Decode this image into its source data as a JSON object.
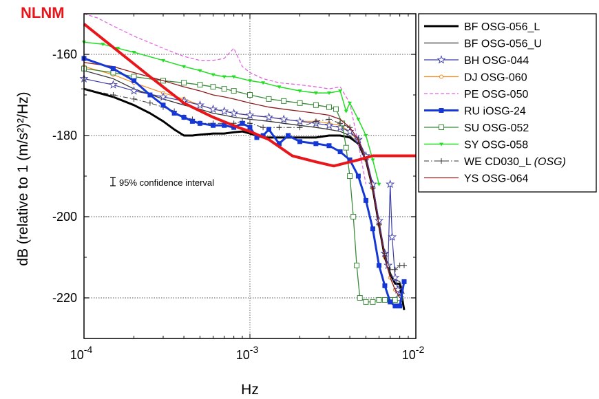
{
  "chart_data": {
    "type": "line",
    "title": "",
    "xlabel": "Hz",
    "ylabel": "dB (relative to 1 (m/s²)²/Hz)",
    "x_scale": "log",
    "xlim": [
      0.0001,
      0.01
    ],
    "ylim": [
      -230,
      -150
    ],
    "x_ticks": [
      {
        "value": 0.0001,
        "base": "10",
        "exp": "-4"
      },
      {
        "value": 0.001,
        "base": "10",
        "exp": "-3"
      },
      {
        "value": 0.01,
        "base": "10",
        "exp": "-2"
      }
    ],
    "y_ticks": [
      -160,
      -180,
      -200,
      -220
    ],
    "grid": "dotted at x=10^-3 and y=-160,-180,-200,-220",
    "legend_position": "right",
    "annotations": {
      "nlnm_label": "NLNM",
      "nlnm_color": "#e8161b",
      "confidence_label": "95% confidence interval"
    },
    "nlnm": {
      "name": "NLNM",
      "color": "#e8161b",
      "x": [
        0.0001,
        0.00025,
        0.0004,
        0.0006,
        0.00085,
        0.001,
        0.0013,
        0.0018,
        0.0025,
        0.0032,
        0.0045,
        0.0055,
        0.0065,
        0.01
      ],
      "y": [
        -152.5,
        -165.5,
        -172,
        -175.5,
        -178,
        -179,
        -181,
        -185,
        -186.5,
        -187.5,
        -186,
        -185,
        -185,
        -185
      ]
    },
    "series": [
      {
        "name": "BF OSG-056_L",
        "color": "#000000",
        "style": "solid",
        "width": 3,
        "marker": "none",
        "x": [
          0.0001,
          0.00015,
          0.0002,
          0.00025,
          0.0003,
          0.00035,
          0.0004,
          0.00045,
          0.0005,
          0.0006,
          0.0007,
          0.0008,
          0.0009,
          0.001,
          0.0012,
          0.0015,
          0.002,
          0.0025,
          0.003,
          0.0035,
          0.004,
          0.0045,
          0.005,
          0.0055,
          0.006,
          0.0065,
          0.007,
          0.0075,
          0.008,
          0.0085
        ],
        "y": [
          -168.5,
          -170.5,
          -172.5,
          -174.5,
          -176.5,
          -178.5,
          -180,
          -180,
          -179.8,
          -179.5,
          -179.5,
          -179.2,
          -179,
          -179.5,
          -180.5,
          -180.5,
          -180.5,
          -180.5,
          -180,
          -180,
          -180.5,
          -182,
          -186,
          -193,
          -202,
          -210,
          -214,
          -216.5,
          -216.5,
          -223
        ]
      },
      {
        "name": "BF OSG-056_U",
        "color": "#333333",
        "style": "solid",
        "width": 1.3,
        "marker": "none",
        "x": [
          0.0001,
          0.00015,
          0.0002,
          0.0003,
          0.0004,
          0.0005,
          0.0006,
          0.0007,
          0.0008,
          0.001,
          0.0013,
          0.0016,
          0.002,
          0.0025,
          0.003,
          0.0035,
          0.004,
          0.0045,
          0.005,
          0.0055,
          0.006,
          0.0065,
          0.007,
          0.0075,
          0.008,
          0.0085
        ],
        "y": [
          -164,
          -166,
          -168.5,
          -171,
          -172.5,
          -173.5,
          -174.5,
          -175,
          -175.5,
          -176,
          -176.5,
          -177,
          -177.5,
          -178,
          -178.5,
          -179,
          -180,
          -182,
          -186,
          -193,
          -202,
          -210,
          -214,
          -215.5,
          -216,
          -219
        ]
      },
      {
        "name": "BH OSG-044",
        "color": "#3a3aa6",
        "style": "solid",
        "width": 1.2,
        "marker": "star",
        "x": [
          0.0001,
          0.00015,
          0.0002,
          0.0003,
          0.0004,
          0.0005,
          0.0006,
          0.0007,
          0.0008,
          0.001,
          0.0013,
          0.0016,
          0.002,
          0.0025,
          0.003,
          0.0035,
          0.004,
          0.0045,
          0.005,
          0.0055,
          0.006,
          0.0065,
          0.0068,
          0.007,
          0.0072,
          0.0075,
          0.0078,
          0.008
        ],
        "y": [
          -166,
          -167.5,
          -169,
          -170.5,
          -171.5,
          -172.5,
          -173.5,
          -174,
          -174.5,
          -175,
          -175.5,
          -176,
          -176.5,
          -177,
          -177.5,
          -178,
          -179,
          -181,
          -185,
          -192,
          -201,
          -209,
          -212,
          -192,
          -205,
          -215,
          -218,
          -220
        ]
      },
      {
        "name": "DJ OSG-060",
        "color": "#f28a1a",
        "style": "solid",
        "width": 1.2,
        "marker": "circle",
        "x": [
          0.0001,
          0.00015,
          0.0002,
          0.0003,
          0.0004,
          0.0005,
          0.0006,
          0.0007,
          0.0008,
          0.001,
          0.0013,
          0.0016,
          0.002,
          0.0025,
          0.003,
          0.0035,
          0.004,
          0.0045,
          0.005,
          0.0055,
          0.006,
          0.0065,
          0.007,
          0.0075,
          0.008
        ],
        "y": [
          -163,
          -165,
          -167,
          -169.5,
          -171,
          -172.5,
          -173.5,
          -174,
          -174.5,
          -175,
          -175.5,
          -176,
          -176.5,
          -176.5,
          -177,
          -177.5,
          -179,
          -181.5,
          -186,
          -193,
          -202,
          -210,
          -215,
          -218,
          -220
        ]
      },
      {
        "name": "PE OSG-050",
        "color": "#e066e0",
        "style": "dashed",
        "width": 1.3,
        "marker": "none",
        "x": [
          0.0001,
          0.00012,
          0.00015,
          0.0002,
          0.0003,
          0.0004,
          0.0005,
          0.0006,
          0.0007,
          0.0008,
          0.0009,
          0.001,
          0.0012,
          0.0015,
          0.002,
          0.0025,
          0.003,
          0.0035,
          0.004,
          0.0045,
          0.005
        ],
        "y": [
          -150,
          -151,
          -153,
          -155.5,
          -158.5,
          -160.5,
          -161.5,
          -161.5,
          -161,
          -158.5,
          -163,
          -164.5,
          -166,
          -167,
          -167.5,
          -168,
          -168.5,
          -168,
          -172,
          -182,
          -192
        ]
      },
      {
        "name": "RU iOSG-24",
        "color": "#1437d6",
        "style": "solid",
        "width": 3,
        "marker": "square",
        "x": [
          0.0001,
          0.00015,
          0.0002,
          0.00025,
          0.0003,
          0.00035,
          0.0004,
          0.00045,
          0.0005,
          0.0006,
          0.0007,
          0.0008,
          0.0009,
          0.001,
          0.0011,
          0.0012,
          0.0013,
          0.0015,
          0.0017,
          0.002,
          0.0025,
          0.003,
          0.0035,
          0.004,
          0.0045,
          0.005,
          0.0055,
          0.006,
          0.0065,
          0.007,
          0.0075,
          0.008,
          0.0085
        ],
        "y": [
          -161,
          -163.5,
          -166.5,
          -170,
          -172.5,
          -174.5,
          -175.5,
          -176.5,
          -177,
          -177.5,
          -177.5,
          -178,
          -177,
          -178,
          -180.5,
          -180,
          -178.5,
          -182,
          -180,
          -181.5,
          -182,
          -182.5,
          -184,
          -186,
          -190,
          -196,
          -203,
          -212,
          -217,
          -221,
          -222,
          -222,
          -216
        ]
      },
      {
        "name": "SU OSG-052",
        "color": "#3a8a3a",
        "style": "solid",
        "width": 1.3,
        "marker": "square-open",
        "x": [
          0.0001,
          0.00015,
          0.0002,
          0.0003,
          0.0004,
          0.0005,
          0.0006,
          0.0007,
          0.0008,
          0.001,
          0.0013,
          0.0016,
          0.002,
          0.0025,
          0.003,
          0.0033,
          0.0036,
          0.0038,
          0.004,
          0.0042,
          0.0044,
          0.0046,
          0.005,
          0.0055,
          0.006,
          0.0065,
          0.007,
          0.0075,
          0.008
        ],
        "y": [
          -163.5,
          -164.5,
          -165.5,
          -166.5,
          -167,
          -167.5,
          -168,
          -168.5,
          -169,
          -170,
          -171,
          -171.5,
          -172,
          -172.5,
          -173,
          -173.5,
          -177,
          -183,
          -190,
          -200,
          -212,
          -220,
          -221,
          -221,
          -220.5,
          -220.5,
          -220.5,
          -220.5,
          -220
        ]
      },
      {
        "name": "SY OSG-058",
        "color": "#22dd22",
        "style": "solid",
        "width": 1.5,
        "marker": "triangle",
        "x": [
          0.0001,
          0.00013,
          0.00016,
          0.0002,
          0.0003,
          0.0004,
          0.0005,
          0.0006,
          0.0007,
          0.0008,
          0.001,
          0.0012,
          0.0015,
          0.002,
          0.0025,
          0.003,
          0.0035,
          0.0038,
          0.004,
          0.0045,
          0.005,
          0.0055,
          0.006
        ],
        "y": [
          -157,
          -157.5,
          -158.5,
          -159.5,
          -161.5,
          -163,
          -164,
          -165,
          -165.5,
          -165.5,
          -166.5,
          -167,
          -168,
          -169,
          -169.5,
          -169.5,
          -169,
          -174,
          -172,
          -176,
          -180,
          -186,
          -192
        ]
      },
      {
        "name": "WE CD030_L (OSG)",
        "color": "#333333",
        "style": "dashdot",
        "width": 1,
        "marker": "plus",
        "x": [
          0.0001,
          0.00015,
          0.0002,
          0.00025,
          0.0003,
          0.00035,
          0.0004,
          0.00045,
          0.0005,
          0.0006,
          0.0007,
          0.0008,
          0.0009,
          0.001,
          0.0012,
          0.0015,
          0.002,
          0.0025,
          0.003,
          0.0035,
          0.004,
          0.0045,
          0.005,
          0.0055,
          0.006,
          0.0065,
          0.007,
          0.0075,
          0.008,
          0.0085
        ],
        "y": [
          -168.5,
          -170,
          -171,
          -172,
          -173,
          -174,
          -175.5,
          -176,
          -177,
          -177,
          -177,
          -177,
          -176.5,
          -177,
          -178,
          -178,
          -178,
          -176.5,
          -176,
          -177,
          -178,
          -181,
          -186,
          -193,
          -202,
          -209,
          -213,
          -213,
          -212,
          -212
        ]
      },
      {
        "name": "YS OSG-064",
        "color": "#8b1a1a",
        "style": "solid",
        "width": 1.3,
        "marker": "none",
        "x": [
          0.0001,
          0.00015,
          0.0002,
          0.0003,
          0.0004,
          0.0005,
          0.0006,
          0.0007,
          0.0008,
          0.001,
          0.0013,
          0.0016,
          0.002,
          0.0025,
          0.003,
          0.0035,
          0.004,
          0.0045,
          0.005,
          0.0055,
          0.006,
          0.0065,
          0.007,
          0.0075,
          0.008
        ],
        "y": [
          -162,
          -163,
          -164.5,
          -166.5,
          -168,
          -169,
          -170,
          -170.5,
          -171,
          -172,
          -173,
          -173.5,
          -174,
          -174.5,
          -175,
          -176,
          -178,
          -181,
          -186,
          -193,
          -202,
          -210,
          -215,
          -218,
          -220
        ]
      }
    ]
  }
}
